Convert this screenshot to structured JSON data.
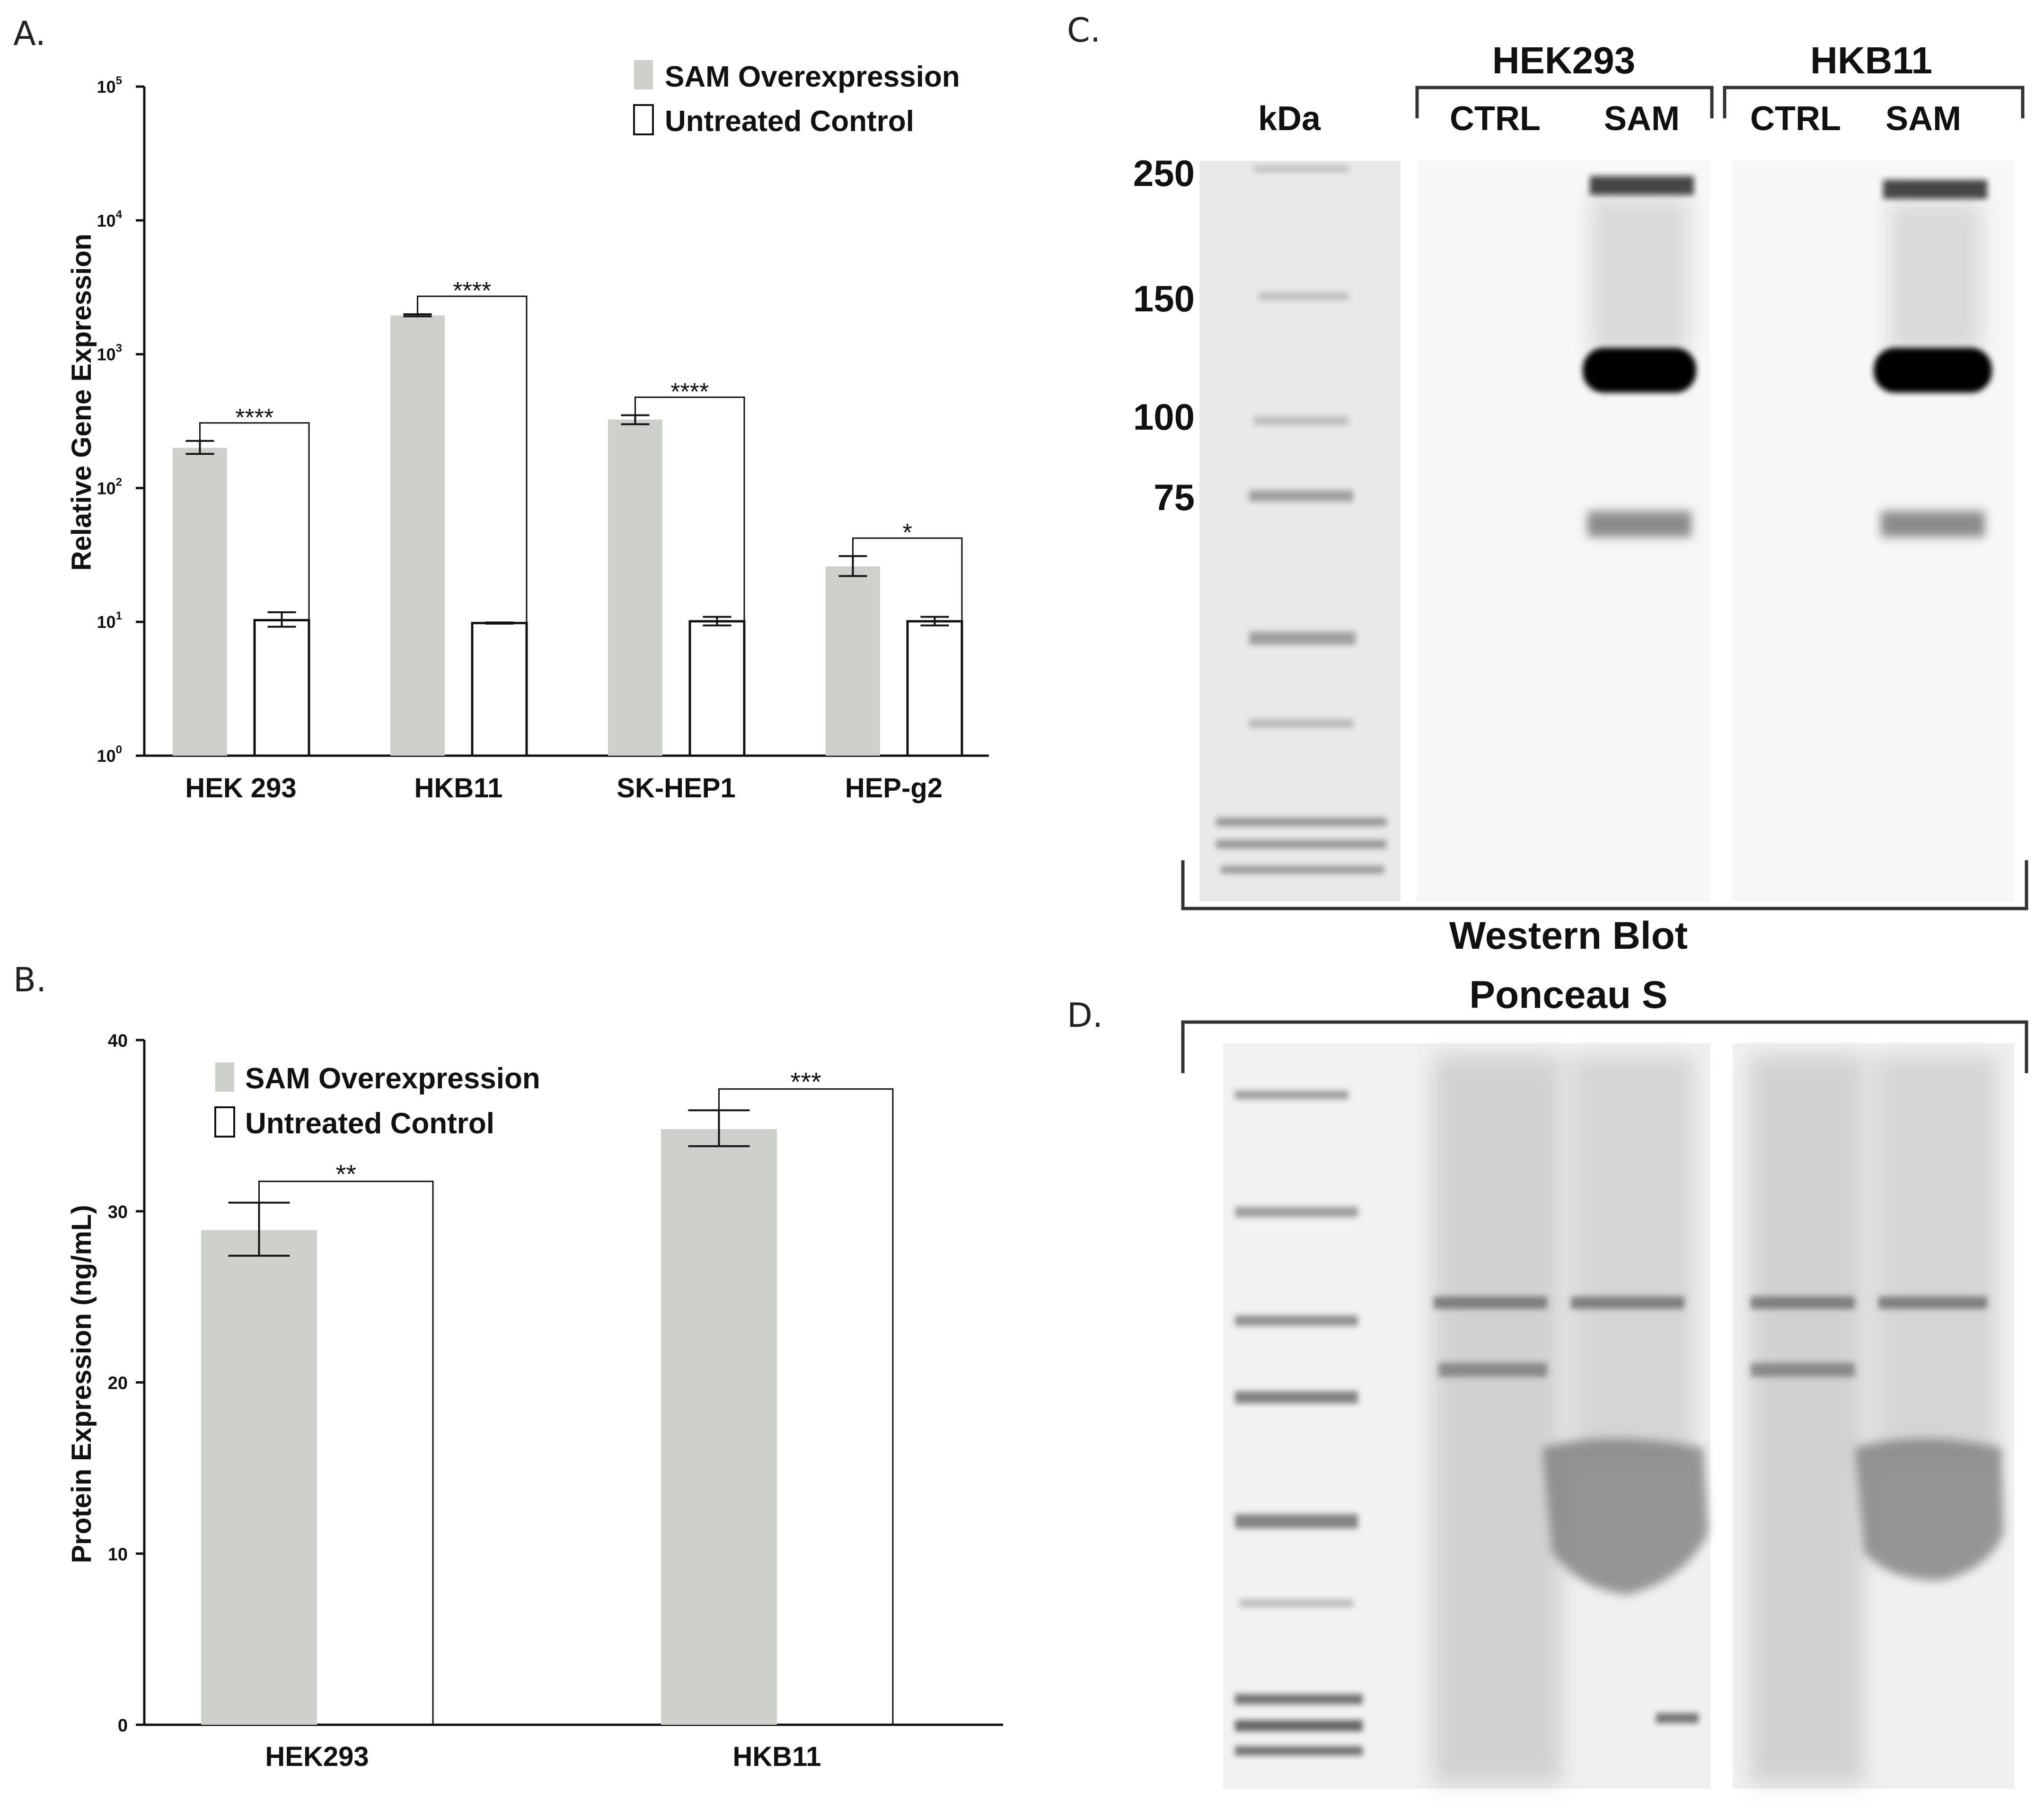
{
  "panels": {
    "a": "A.",
    "b": "B.",
    "c": "C.",
    "d": "D."
  },
  "colors": {
    "sam": "#cdd0cb",
    "control": "#ffffff",
    "outline": "#111111"
  },
  "chart_data": [
    {
      "type": "bar",
      "panel": "A.",
      "categories": [
        "HEK 293",
        "HKB11",
        "SK-HEP1",
        "HEP-g2"
      ],
      "ylabel": "Relative Gene Expression",
      "yscale": "log",
      "ylim": [
        1,
        100000
      ],
      "yticks": [
        {
          "value": 1,
          "base": "10",
          "exp": "0"
        },
        {
          "value": 10,
          "base": "10",
          "exp": "1"
        },
        {
          "value": 100,
          "base": "10",
          "exp": "2"
        },
        {
          "value": 1000,
          "base": "10",
          "exp": "3"
        },
        {
          "value": 10000,
          "base": "10",
          "exp": "4"
        },
        {
          "value": 100000,
          "base": "10",
          "exp": "5"
        }
      ],
      "legend": {
        "position": "top-right",
        "entries": [
          "SAM Overexpression",
          "Untreated Control"
        ]
      },
      "series": [
        {
          "name": "SAM Overexpression",
          "values": [
            200,
            1950,
            325,
            26
          ],
          "err_low": [
            180,
            1920,
            300,
            22
          ],
          "err_high": [
            225,
            1990,
            350,
            31
          ]
        },
        {
          "name": "Untreated Control",
          "values": [
            10.3,
            9.8,
            10.1,
            10.1
          ],
          "err_low": [
            9.2,
            9.7,
            9.4,
            9.4
          ],
          "err_high": [
            11.8,
            9.9,
            10.9,
            10.9
          ]
        }
      ],
      "significance": [
        "****",
        "****",
        "****",
        "*"
      ]
    },
    {
      "type": "bar",
      "panel": "B.",
      "categories": [
        "HEK293",
        "HKB11"
      ],
      "ylabel": "Protein Expression (ng/mL)",
      "ylim": [
        0,
        40
      ],
      "yticks": [
        0,
        10,
        20,
        30,
        40
      ],
      "legend": {
        "position": "top-left",
        "entries": [
          "SAM Overexpression",
          "Untreated Control"
        ]
      },
      "series": [
        {
          "name": "SAM Overexpression",
          "values": [
            28.9,
            34.8
          ],
          "err_low": [
            27.4,
            33.8
          ],
          "err_high": [
            30.5,
            35.9
          ]
        },
        {
          "name": "Untreated Control",
          "values": [
            0,
            0
          ]
        }
      ],
      "significance": [
        "**",
        "***"
      ]
    }
  ],
  "western_blot": {
    "unit": "kDa",
    "markers": [
      "250",
      "150",
      "100",
      "75"
    ],
    "groups": [
      {
        "name": "HEK293",
        "lanes": [
          "CTRL",
          "SAM"
        ]
      },
      {
        "name": "HKB11",
        "lanes": [
          "CTRL",
          "SAM"
        ]
      }
    ],
    "caption": "Western Blot"
  },
  "ponceau": {
    "caption": "Ponceau S"
  }
}
